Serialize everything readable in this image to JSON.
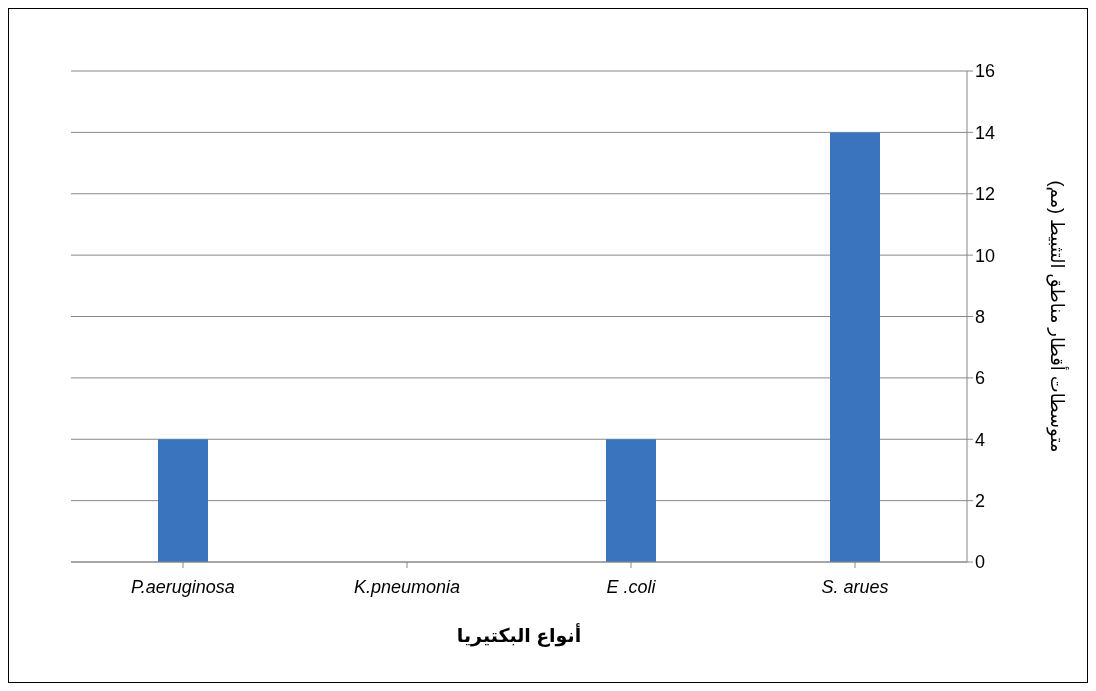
{
  "chart_data": {
    "type": "bar",
    "xlabel": "أنواع البكتيريا",
    "ylabel": "متوسطات أقطار مناطق التثبيط  (مم)",
    "categories": [
      "P.aeruginosa",
      "K.pneumonia",
      "E .coli",
      "S. arues"
    ],
    "values": [
      4,
      0,
      4,
      14
    ],
    "color": "#3a74bf",
    "ylim": [
      0,
      16
    ],
    "yticks": [
      0,
      2,
      4,
      6,
      8,
      10,
      12,
      14,
      16
    ],
    "grid": "y"
  }
}
